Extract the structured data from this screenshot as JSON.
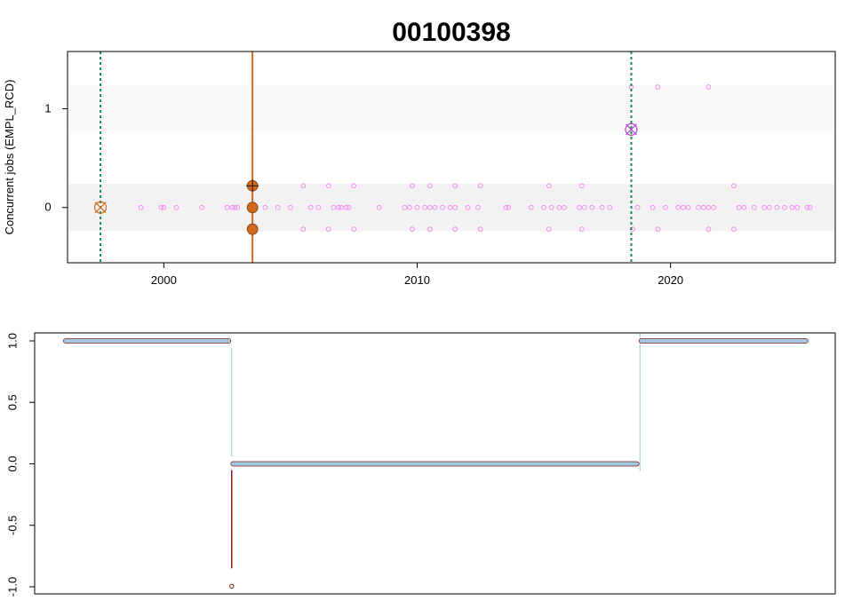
{
  "chart_data": [
    {
      "type": "scatter",
      "title": "00100398",
      "xlabel": "",
      "ylabel": "Concurrent jobs (EMPL_RCD)",
      "xlim": [
        1996.2,
        2026.5
      ],
      "ylim": [
        -0.56,
        1.58
      ],
      "x_ticks": [
        2000,
        2010,
        2020
      ],
      "y_ticks": [
        0,
        1
      ],
      "x_tick_labels": [
        "2000",
        "2010",
        "2020"
      ],
      "y_tick_labels": [
        "0",
        "1"
      ],
      "grid": false,
      "bands": [
        {
          "center": 0,
          "halfwidth": 0.24,
          "color": "#f2f2f2"
        },
        {
          "center": 1,
          "halfwidth": 0.24,
          "color": "#fafafa"
        }
      ],
      "vertical_lines": [
        {
          "x": 1997.5,
          "style": "dotted",
          "color": "#1b8a5a"
        },
        {
          "x": 2003.5,
          "style": "solid",
          "color": "#d2691e"
        },
        {
          "x": 2018.45,
          "style": "dotted",
          "color": "#1b8a5a"
        }
      ],
      "series": [
        {
          "marker": "small-open-circle",
          "color": "#f08cf0",
          "points": [
            [
              1999.1,
              0
            ],
            [
              1999.9,
              0
            ],
            [
              2000.0,
              0
            ],
            [
              2000.5,
              0
            ],
            [
              2001.5,
              0
            ],
            [
              2002.5,
              0
            ],
            [
              2002.7,
              0
            ],
            [
              2002.8,
              0
            ],
            [
              2002.9,
              0
            ],
            [
              2004.0,
              0
            ],
            [
              2004.5,
              0
            ],
            [
              2005.0,
              0
            ],
            [
              2005.8,
              0
            ],
            [
              2006.1,
              0
            ],
            [
              2006.7,
              0
            ],
            [
              2006.9,
              0
            ],
            [
              2007.0,
              0
            ],
            [
              2007.2,
              0
            ],
            [
              2007.3,
              0
            ],
            [
              2008.5,
              0
            ],
            [
              2009.5,
              0
            ],
            [
              2009.7,
              0
            ],
            [
              2010.0,
              0
            ],
            [
              2010.3,
              0
            ],
            [
              2010.5,
              0
            ],
            [
              2010.7,
              0
            ],
            [
              2011.0,
              0
            ],
            [
              2011.3,
              0
            ],
            [
              2011.5,
              0
            ],
            [
              2012.0,
              0
            ],
            [
              2012.4,
              0
            ],
            [
              2013.5,
              0
            ],
            [
              2013.6,
              0
            ],
            [
              2014.5,
              0
            ],
            [
              2015.0,
              0
            ],
            [
              2015.3,
              0
            ],
            [
              2015.6,
              0
            ],
            [
              2015.8,
              0
            ],
            [
              2016.4,
              0
            ],
            [
              2016.6,
              0
            ],
            [
              2016.9,
              0
            ],
            [
              2017.3,
              0
            ],
            [
              2017.6,
              0
            ],
            [
              2018.7,
              0
            ],
            [
              2019.3,
              0
            ],
            [
              2019.8,
              0
            ],
            [
              2020.3,
              0
            ],
            [
              2020.5,
              0
            ],
            [
              2020.7,
              0
            ],
            [
              2021.1,
              0
            ],
            [
              2021.3,
              0
            ],
            [
              2021.5,
              0
            ],
            [
              2021.7,
              0
            ],
            [
              2022.7,
              0
            ],
            [
              2022.9,
              0
            ],
            [
              2023.3,
              0
            ],
            [
              2023.7,
              0
            ],
            [
              2023.9,
              0
            ],
            [
              2024.2,
              0
            ],
            [
              2024.5,
              0
            ],
            [
              2024.8,
              0
            ],
            [
              2025.0,
              0
            ],
            [
              2025.4,
              0
            ],
            [
              2025.5,
              0
            ],
            [
              2005.5,
              0.22
            ],
            [
              2006.5,
              0.22
            ],
            [
              2007.5,
              0.22
            ],
            [
              2009.8,
              0.22
            ],
            [
              2010.5,
              0.22
            ],
            [
              2011.5,
              0.22
            ],
            [
              2012.5,
              0.22
            ],
            [
              2015.2,
              0.22
            ],
            [
              2016.5,
              0.22
            ],
            [
              2022.5,
              0.22
            ],
            [
              2005.5,
              -0.22
            ],
            [
              2006.5,
              -0.22
            ],
            [
              2007.5,
              -0.22
            ],
            [
              2009.8,
              -0.22
            ],
            [
              2010.5,
              -0.22
            ],
            [
              2011.5,
              -0.22
            ],
            [
              2012.5,
              -0.22
            ],
            [
              2015.2,
              -0.22
            ],
            [
              2016.5,
              -0.22
            ],
            [
              2018.5,
              -0.22
            ],
            [
              2019.5,
              -0.22
            ],
            [
              2021.5,
              -0.22
            ],
            [
              2022.5,
              -0.22
            ],
            [
              2018.45,
              1.22
            ],
            [
              2019.5,
              1.22
            ],
            [
              2021.5,
              1.22
            ]
          ]
        },
        {
          "marker": "filled-circle",
          "color": "#d2691e",
          "points": [
            [
              2003.5,
              0.22
            ],
            [
              2003.5,
              0
            ],
            [
              2003.5,
              -0.22
            ]
          ]
        },
        {
          "marker": "circle-cross",
          "color": "#d2691e",
          "points": [
            [
              1997.5,
              0
            ]
          ]
        },
        {
          "marker": "circle-x",
          "color": "#b845d0",
          "points": [
            [
              2018.45,
              0.79
            ]
          ]
        }
      ]
    },
    {
      "type": "line",
      "title": "",
      "xlabel": "",
      "ylabel": "",
      "xlim": [
        0,
        1
      ],
      "ylim": [
        -1.0,
        1.0
      ],
      "y_ticks": [
        1.0,
        0.5,
        0.0,
        -0.5,
        -1.0
      ],
      "y_tick_labels": [
        "1.0",
        "0.5",
        "0.0",
        "-0.5",
        "-1.0"
      ],
      "grid": false,
      "series": [
        {
          "color": "#9ecae1",
          "edge_color": "#8b1a1a",
          "segments": [
            {
              "x": [
                0.036,
                0.245
              ],
              "y": 1.0
            },
            {
              "x": [
                0.245,
                0.755
              ],
              "y": 0.0
            },
            {
              "x": [
                0.755,
                0.966
              ],
              "y": 1.0
            }
          ]
        }
      ],
      "connectors": [
        {
          "x": 0.245,
          "y": [
            1.0,
            0.0
          ],
          "color": "#9ecae1"
        },
        {
          "x": 0.755,
          "y": [
            0.0,
            1.0
          ],
          "color": "#9ecae1"
        }
      ],
      "drops": [
        {
          "x": 0.245,
          "y": [
            -0.05,
            -0.85
          ],
          "color": "#8b1a1a"
        }
      ],
      "outliers": [
        {
          "x": 0.245,
          "y": -0.995,
          "color": "#8b1a1a"
        }
      ]
    }
  ]
}
